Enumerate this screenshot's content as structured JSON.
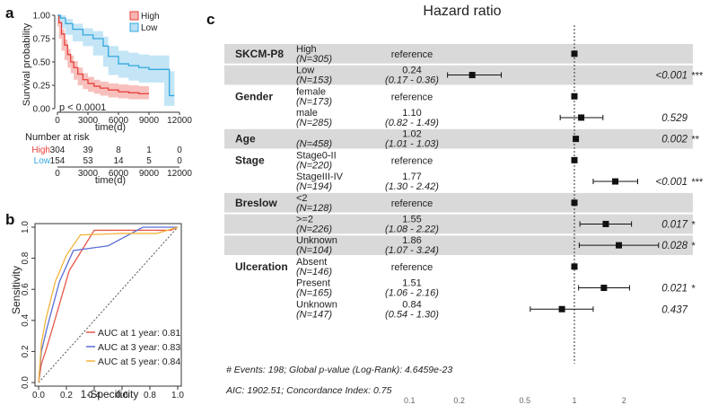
{
  "panels": {
    "a": "a",
    "b": "b",
    "c": "c"
  },
  "chart_data": [
    {
      "type": "line",
      "panel": "a",
      "title": "",
      "xlabel": "time(d)",
      "ylabel": "Survival probability",
      "xlim": [
        0,
        12000
      ],
      "ylim": [
        0,
        1
      ],
      "xticks": [
        "0",
        "3000",
        "6000",
        "9000",
        "12000"
      ],
      "yticks": [
        "0.00",
        "0.25",
        "0.50",
        "0.75",
        "1.00"
      ],
      "pvalue": "p < 0.0001",
      "legend": {
        "placement": "top-right",
        "entries": [
          "High",
          "Low"
        ]
      },
      "colors": {
        "High": "#e8403a",
        "Low": "#35a8e0"
      },
      "series": [
        {
          "name": "High",
          "x": [
            0,
            150,
            400,
            700,
            1000,
            1300,
            1600,
            2000,
            2500,
            3000,
            3600,
            4200,
            5000,
            6000,
            7000,
            8000,
            9000
          ],
          "y": [
            1.0,
            0.92,
            0.8,
            0.68,
            0.58,
            0.5,
            0.44,
            0.37,
            0.31,
            0.27,
            0.24,
            0.22,
            0.2,
            0.18,
            0.17,
            0.16,
            0.16
          ],
          "ci_upper": [
            1.0,
            0.95,
            0.85,
            0.74,
            0.64,
            0.57,
            0.51,
            0.44,
            0.38,
            0.34,
            0.31,
            0.29,
            0.27,
            0.26,
            0.25,
            0.24,
            0.24
          ],
          "ci_lower": [
            1.0,
            0.88,
            0.75,
            0.62,
            0.52,
            0.44,
            0.38,
            0.31,
            0.25,
            0.21,
            0.18,
            0.16,
            0.14,
            0.12,
            0.11,
            0.1,
            0.1
          ]
        },
        {
          "name": "Low",
          "x": [
            0,
            300,
            800,
            1500,
            2500,
            3500,
            4500,
            5000,
            6000,
            7000,
            8000,
            9000,
            10500,
            11000,
            11500
          ],
          "y": [
            1.0,
            0.97,
            0.91,
            0.85,
            0.79,
            0.75,
            0.67,
            0.56,
            0.48,
            0.46,
            0.44,
            0.42,
            0.42,
            0.14,
            0.14
          ],
          "ci_upper": [
            1.0,
            1.0,
            0.96,
            0.91,
            0.86,
            0.83,
            0.77,
            0.67,
            0.62,
            0.6,
            0.58,
            0.57,
            0.57,
            0.4,
            0.4
          ],
          "ci_lower": [
            1.0,
            0.94,
            0.86,
            0.79,
            0.72,
            0.67,
            0.57,
            0.45,
            0.36,
            0.33,
            0.3,
            0.28,
            0.28,
            0.03,
            0.03
          ]
        }
      ],
      "risk_table": {
        "title": "Number at risk",
        "xlabel": "time(d)",
        "xticks": [
          "0",
          "3000",
          "6000",
          "9000",
          "12000"
        ],
        "rows": [
          {
            "name": "High",
            "values": [
              "304",
              "39",
              "8",
              "1",
              "0"
            ]
          },
          {
            "name": "Low",
            "values": [
              "154",
              "53",
              "14",
              "5",
              "0"
            ]
          }
        ]
      }
    },
    {
      "type": "line",
      "panel": "b",
      "title": "",
      "xlabel": "1-Specificity",
      "ylabel": "Sensitivity",
      "xlim": [
        0,
        1
      ],
      "ylim": [
        0,
        1
      ],
      "xticks": [
        "0.0",
        "0.2",
        "0.4",
        "0.6",
        "0.8",
        "1.0"
      ],
      "yticks": [
        "0.0",
        "0.2",
        "0.4",
        "0.6",
        "0.8",
        "1.0"
      ],
      "legend": {
        "placement": "bottom-right"
      },
      "series": [
        {
          "name": "AUC at 1 year: 0.81",
          "color": "#e8574a",
          "x": [
            0,
            0.02,
            0.05,
            0.1,
            0.22,
            0.4,
            0.58,
            0.95,
            1.0
          ],
          "y": [
            0,
            0.12,
            0.2,
            0.35,
            0.72,
            0.98,
            0.98,
            0.98,
            1.0
          ]
        },
        {
          "name": "AUC at 3 year: 0.83",
          "color": "#5a6fd6",
          "x": [
            0,
            0.02,
            0.06,
            0.15,
            0.25,
            0.5,
            0.75,
            0.95,
            1.0
          ],
          "y": [
            0,
            0.2,
            0.35,
            0.65,
            0.85,
            0.88,
            1.0,
            1.0,
            1.0
          ]
        },
        {
          "name": "AUC at 5 year: 0.84",
          "color": "#f2b43a",
          "x": [
            0,
            0.02,
            0.05,
            0.12,
            0.2,
            0.3,
            0.6,
            0.85,
            1.0
          ],
          "y": [
            0,
            0.25,
            0.4,
            0.65,
            0.82,
            0.95,
            0.96,
            0.96,
            1.0
          ]
        }
      ]
    },
    {
      "type": "scatter",
      "panel": "c",
      "title": "Hazard ratio",
      "x_scale": "log",
      "xticks": [
        "0.1",
        "0.2",
        "0.5",
        "1",
        "2"
      ],
      "reference_line": 1,
      "rows": [
        {
          "variable": "SKCM-P8",
          "level": "High",
          "n": "(N=305)",
          "hr_text": "reference",
          "ci_text": "",
          "p": "",
          "hr": 1,
          "lo": null,
          "hi": null
        },
        {
          "variable": "",
          "level": "Low",
          "n": "(N=153)",
          "hr_text": "0.24",
          "ci_text": "(0.17 - 0.36)",
          "p": "<0.001 ***",
          "hr": 0.24,
          "lo": 0.17,
          "hi": 0.36
        },
        {
          "variable": "Gender",
          "level": "female",
          "n": "(N=173)",
          "hr_text": "reference",
          "ci_text": "",
          "p": "",
          "hr": 1,
          "lo": null,
          "hi": null
        },
        {
          "variable": "",
          "level": "male",
          "n": "(N=285)",
          "hr_text": "1.10",
          "ci_text": "(0.82 - 1.49)",
          "p": "0.529",
          "hr": 1.1,
          "lo": 0.82,
          "hi": 1.49
        },
        {
          "variable": "Age",
          "level": "",
          "n": "(N=458)",
          "hr_text": "1.02",
          "ci_text": "(1.01 - 1.03)",
          "p": "0.002 **",
          "hr": 1.02,
          "lo": 1.01,
          "hi": 1.03
        },
        {
          "variable": "Stage",
          "level": "Stage0-II",
          "n": "(N=220)",
          "hr_text": "reference",
          "ci_text": "",
          "p": "",
          "hr": 1,
          "lo": null,
          "hi": null
        },
        {
          "variable": "",
          "level": "StageIII-IV",
          "n": "(N=194)",
          "hr_text": "1.77",
          "ci_text": "(1.30 - 2.42)",
          "p": "<0.001 ***",
          "hr": 1.77,
          "lo": 1.3,
          "hi": 2.42
        },
        {
          "variable": "Breslow",
          "level": "<2",
          "n": "(N=128)",
          "hr_text": "reference",
          "ci_text": "",
          "p": "",
          "hr": 1,
          "lo": null,
          "hi": null
        },
        {
          "variable": "",
          "level": ">=2",
          "n": "(N=226)",
          "hr_text": "1.55",
          "ci_text": "(1.08 - 2.22)",
          "p": "0.017 *",
          "hr": 1.55,
          "lo": 1.08,
          "hi": 2.22
        },
        {
          "variable": "",
          "level": "Unknown",
          "n": "(N=104)",
          "hr_text": "1.86",
          "ci_text": "(1.07 - 3.24)",
          "p": "0.028 *",
          "hr": 1.86,
          "lo": 1.07,
          "hi": 3.24
        },
        {
          "variable": "Ulceration",
          "level": "Absent",
          "n": "(N=146)",
          "hr_text": "reference",
          "ci_text": "",
          "p": "",
          "hr": 1,
          "lo": null,
          "hi": null
        },
        {
          "variable": "",
          "level": "Present",
          "n": "(N=165)",
          "hr_text": "1.51",
          "ci_text": "(1.06 - 2.16)",
          "p": "0.021 *",
          "hr": 1.51,
          "lo": 1.06,
          "hi": 2.16
        },
        {
          "variable": "",
          "level": "Unknown",
          "n": "(N=147)",
          "hr_text": "0.84",
          "ci_text": "(0.54 - 1.30)",
          "p": "0.437",
          "hr": 0.84,
          "lo": 0.54,
          "hi": 1.3
        }
      ],
      "footnotes": [
        "# Events: 198; Global p-value (Log-Rank): 4.6459e-23",
        "AIC: 1902.51; Concordance Index: 0.75"
      ]
    }
  ]
}
